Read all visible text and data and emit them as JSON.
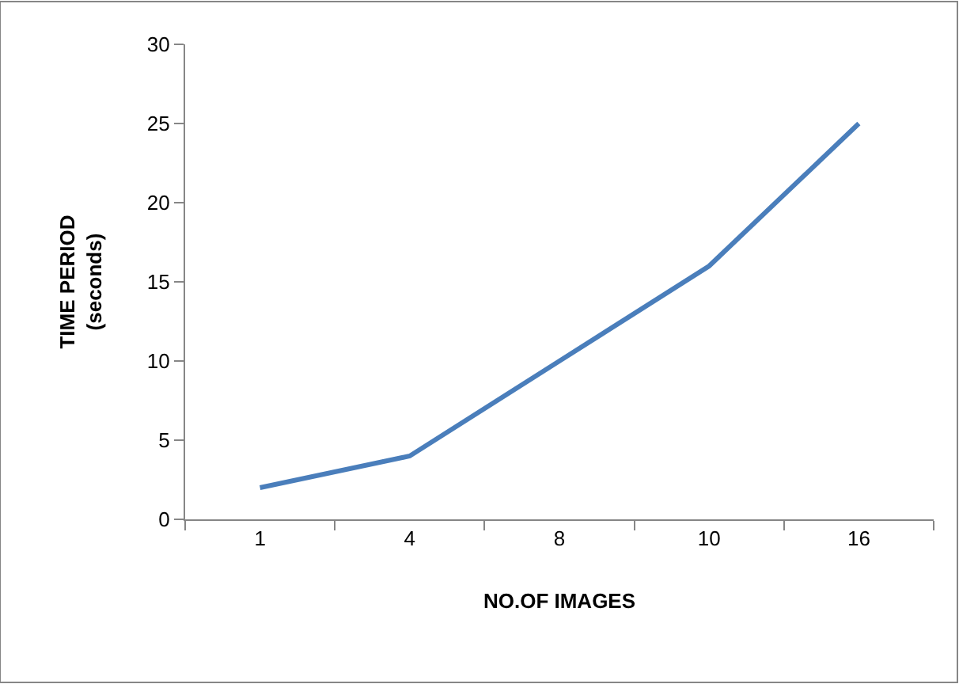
{
  "chart_data": {
    "type": "line",
    "xlabel": "NO.OF IMAGES",
    "ylabel": "TIME PERIOD\n(seconds)",
    "categories": [
      "1",
      "4",
      "8",
      "10",
      "16"
    ],
    "series": [
      {
        "color": "#4a7ebb",
        "values": [
          2,
          4,
          10,
          16,
          25
        ]
      }
    ],
    "ylim": [
      0,
      30
    ],
    "yticks": [
      0,
      5,
      10,
      15,
      20,
      25,
      30
    ],
    "legend": false,
    "marker": "none",
    "line_style": "solid"
  }
}
